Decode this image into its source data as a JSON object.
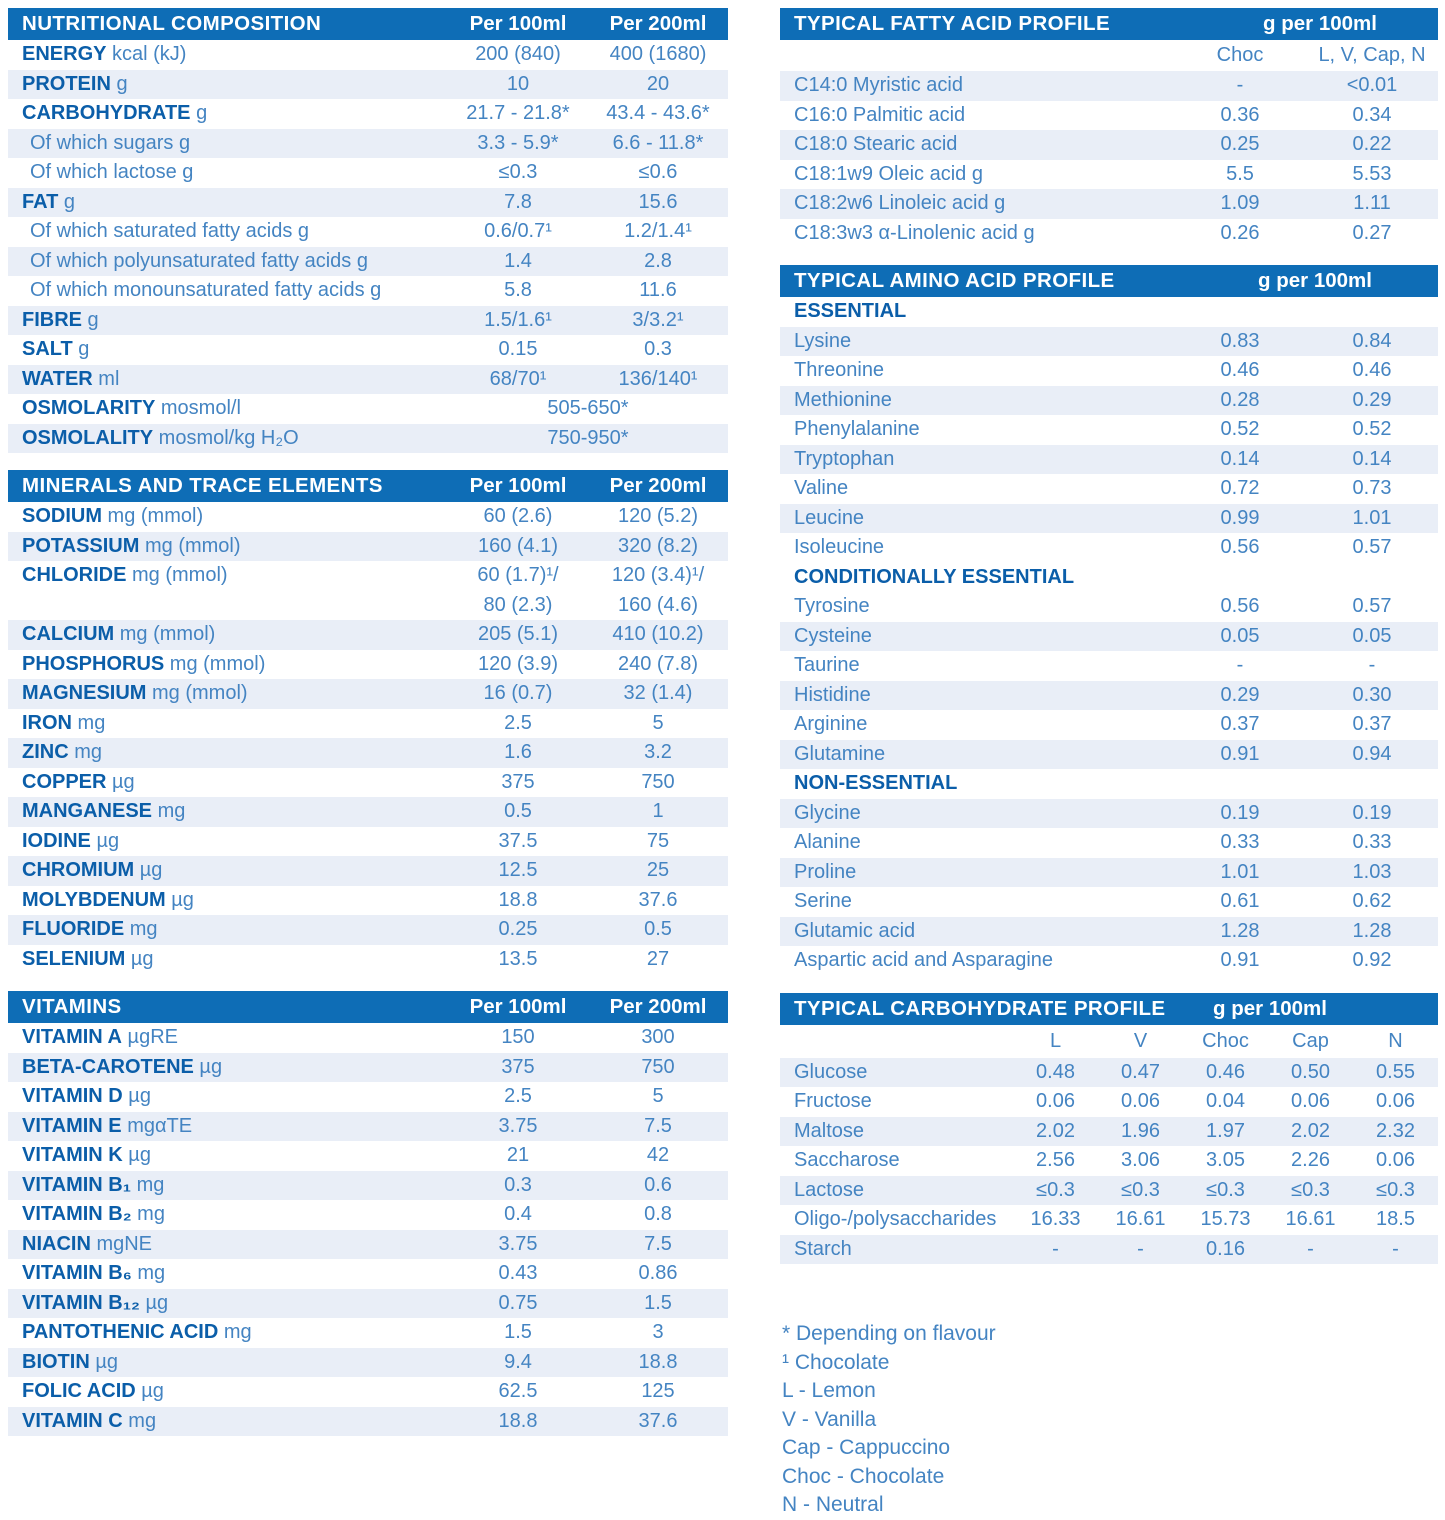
{
  "colors": {
    "header_bg": "#0e6db6",
    "label_blue": "#0b5ea9",
    "text_blue": "#4484c2",
    "row_shade": "#e9eef7",
    "header_text": "#ffffff"
  },
  "left": {
    "nutritional": {
      "title": "NUTRITIONAL COMPOSITION",
      "col1": "Per 100ml",
      "col2": "Per 200ml",
      "rows": [
        {
          "b": "ENERGY",
          "r": "kcal (kJ)",
          "v1": "200 (840)",
          "v2": "400 (1680)",
          "shade": false
        },
        {
          "b": "PROTEIN",
          "r": "g",
          "v1": "10",
          "v2": "20",
          "shade": true
        },
        {
          "b": "CARBOHYDRATE",
          "r": "g",
          "v1": "21.7 - 21.8*",
          "v2": "43.4 - 43.6*",
          "shade": false
        },
        {
          "r": "Of which sugars g",
          "indent": true,
          "v1": "3.3 - 5.9*",
          "v2": "6.6 - 11.8*",
          "shade": true
        },
        {
          "r": "Of which lactose g",
          "indent": true,
          "v1": "≤0.3",
          "v2": "≤0.6",
          "shade": false
        },
        {
          "b": "FAT",
          "r": "g",
          "v1": "7.8",
          "v2": "15.6",
          "shade": true
        },
        {
          "r": "Of which saturated fatty acids g",
          "indent": true,
          "v1": "0.6/0.7¹",
          "v2": "1.2/1.4¹",
          "shade": false
        },
        {
          "r": "Of which polyunsaturated fatty acids g",
          "indent": true,
          "v1": "1.4",
          "v2": "2.8",
          "shade": true
        },
        {
          "r": "Of which monounsaturated fatty acids g",
          "indent": true,
          "v1": "5.8",
          "v2": "11.6",
          "shade": false
        },
        {
          "b": "FIBRE",
          "r": "g",
          "v1": "1.5/1.6¹",
          "v2": "3/3.2¹",
          "shade": true
        },
        {
          "b": "SALT",
          "r": "g",
          "v1": "0.15",
          "v2": "0.3",
          "shade": false
        },
        {
          "b": "WATER",
          "r": "ml",
          "v1": "68/70¹",
          "v2": "136/140¹",
          "shade": true
        },
        {
          "b": "OSMOLARITY",
          "r": "mosmol/l",
          "span": "505-650*",
          "shade": false
        },
        {
          "b": "OSMOLALITY",
          "r": "mosmol/kg H₂O",
          "span": "750-950*",
          "shade": true
        }
      ]
    },
    "minerals": {
      "title": "MINERALS AND TRACE ELEMENTS",
      "col1": "Per 100ml",
      "col2": "Per 200ml",
      "rows": [
        {
          "b": "SODIUM",
          "r": "mg (mmol)",
          "v1": "60 (2.6)",
          "v2": "120 (5.2)",
          "shade": false
        },
        {
          "b": "POTASSIUM",
          "r": "mg (mmol)",
          "v1": "160 (4.1)",
          "v2": "320 (8.2)",
          "shade": true
        },
        {
          "b": "CHLORIDE",
          "r": "mg (mmol)",
          "v1": "60 (1.7)¹/\n80 (2.3)",
          "v2": "120 (3.4)¹/\n160 (4.6)",
          "tall": true,
          "shade": false
        },
        {
          "b": "CALCIUM",
          "r": "mg (mmol)",
          "v1": "205 (5.1)",
          "v2": "410 (10.2)",
          "shade": true
        },
        {
          "b": "PHOSPHORUS",
          "r": "mg (mmol)",
          "v1": "120 (3.9)",
          "v2": "240 (7.8)",
          "shade": false
        },
        {
          "b": "MAGNESIUM",
          "r": "mg (mmol)",
          "v1": "16 (0.7)",
          "v2": "32 (1.4)",
          "shade": true
        },
        {
          "b": "IRON",
          "r": "mg",
          "v1": "2.5",
          "v2": "5",
          "shade": false
        },
        {
          "b": "ZINC",
          "r": "mg",
          "v1": "1.6",
          "v2": "3.2",
          "shade": true
        },
        {
          "b": "COPPER",
          "r": "µg",
          "v1": "375",
          "v2": "750",
          "shade": false
        },
        {
          "b": "MANGANESE",
          "r": "mg",
          "v1": "0.5",
          "v2": "1",
          "shade": true
        },
        {
          "b": "IODINE",
          "r": "µg",
          "v1": "37.5",
          "v2": "75",
          "shade": false
        },
        {
          "b": "CHROMIUM",
          "r": "µg",
          "v1": "12.5",
          "v2": "25",
          "shade": true
        },
        {
          "b": "MOLYBDENUM",
          "r": "µg",
          "v1": "18.8",
          "v2": "37.6",
          "shade": false
        },
        {
          "b": "FLUORIDE",
          "r": "mg",
          "v1": "0.25",
          "v2": "0.5",
          "shade": true
        },
        {
          "b": "SELENIUM",
          "r": "µg",
          "v1": "13.5",
          "v2": "27",
          "shade": false
        }
      ]
    },
    "vitamins": {
      "title": "VITAMINS",
      "col1": "Per 100ml",
      "col2": "Per 200ml",
      "rows": [
        {
          "b": "VITAMIN A",
          "r": "µgRE",
          "v1": "150",
          "v2": "300",
          "shade": false
        },
        {
          "b": "BETA-CAROTENE",
          "r": "µg",
          "v1": "375",
          "v2": "750",
          "shade": true
        },
        {
          "b": "VITAMIN D",
          "r": "µg",
          "v1": "2.5",
          "v2": "5",
          "shade": false
        },
        {
          "b": "VITAMIN E",
          "r": "mgαTE",
          "v1": "3.75",
          "v2": "7.5",
          "shade": true
        },
        {
          "b": "VITAMIN K",
          "r": "µg",
          "v1": "21",
          "v2": "42",
          "shade": false
        },
        {
          "b": "VITAMIN B₁",
          "r": "mg",
          "v1": "0.3",
          "v2": "0.6",
          "shade": true
        },
        {
          "b": "VITAMIN B₂",
          "r": "mg",
          "v1": "0.4",
          "v2": "0.8",
          "shade": false
        },
        {
          "b": "NIACIN",
          "r": "mgNE",
          "v1": "3.75",
          "v2": "7.5",
          "shade": true
        },
        {
          "b": "VITAMIN B₆",
          "r": "mg",
          "v1": "0.43",
          "v2": "0.86",
          "shade": false
        },
        {
          "b": "VITAMIN B₁₂",
          "r": "µg",
          "v1": "0.75",
          "v2": "1.5",
          "shade": true
        },
        {
          "b": "PANTOTHENIC ACID",
          "r": "mg",
          "v1": "1.5",
          "v2": "3",
          "shade": false
        },
        {
          "b": "BIOTIN",
          "r": "µg",
          "v1": "9.4",
          "v2": "18.8",
          "shade": true
        },
        {
          "b": "FOLIC ACID",
          "r": "µg",
          "v1": "62.5",
          "v2": "125",
          "shade": false
        },
        {
          "b": "VITAMIN C",
          "r": "mg",
          "v1": "18.8",
          "v2": "37.6",
          "shade": true
        }
      ]
    }
  },
  "right": {
    "fatty": {
      "title": "TYPICAL FATTY ACID PROFILE",
      "unit_header": "g per 100ml",
      "cols": [
        "Choc",
        "L, V, Cap, N"
      ],
      "rows": [
        {
          "name": "C14:0 Myristic acid",
          "v1": "-",
          "v2": "<0.01",
          "shade": true
        },
        {
          "name": "C16:0 Palmitic acid",
          "v1": "0.36",
          "v2": "0.34",
          "shade": false
        },
        {
          "name": "C18:0 Stearic acid",
          "v1": "0.25",
          "v2": "0.22",
          "shade": true
        },
        {
          "name": "C18:1w9 Oleic acid g",
          "v1": "5.5",
          "v2": "5.53",
          "shade": false
        },
        {
          "name": "C18:2w6 Linoleic acid g",
          "v1": "1.09",
          "v2": "1.11",
          "shade": true
        },
        {
          "name": "C18:3w3 α-Linolenic acid g",
          "v1": "0.26",
          "v2": "0.27",
          "shade": false
        }
      ]
    },
    "amino": {
      "title": "TYPICAL AMINO ACID PROFILE",
      "unit_header": "g per 100ml",
      "groups": [
        {
          "heading": "ESSENTIAL",
          "rows": [
            {
              "name": "Lysine",
              "v1": "0.83",
              "v2": "0.84",
              "shade": true
            },
            {
              "name": "Threonine",
              "v1": "0.46",
              "v2": "0.46",
              "shade": false
            },
            {
              "name": "Methionine",
              "v1": "0.28",
              "v2": "0.29",
              "shade": true
            },
            {
              "name": "Phenylalanine",
              "v1": "0.52",
              "v2": "0.52",
              "shade": false
            },
            {
              "name": "Tryptophan",
              "v1": "0.14",
              "v2": "0.14",
              "shade": true
            },
            {
              "name": "Valine",
              "v1": "0.72",
              "v2": "0.73",
              "shade": false
            },
            {
              "name": "Leucine",
              "v1": "0.99",
              "v2": "1.01",
              "shade": true
            },
            {
              "name": "Isoleucine",
              "v1": "0.56",
              "v2": "0.57",
              "shade": false
            }
          ]
        },
        {
          "heading": "CONDITIONALLY ESSENTIAL",
          "rows": [
            {
              "name": "Tyrosine",
              "v1": "0.56",
              "v2": "0.57",
              "shade": false
            },
            {
              "name": "Cysteine",
              "v1": "0.05",
              "v2": "0.05",
              "shade": true
            },
            {
              "name": "Taurine",
              "v1": "-",
              "v2": "-",
              "shade": false
            },
            {
              "name": "Histidine",
              "v1": "0.29",
              "v2": "0.30",
              "shade": true
            },
            {
              "name": "Arginine",
              "v1": "0.37",
              "v2": "0.37",
              "shade": false
            },
            {
              "name": "Glutamine",
              "v1": "0.91",
              "v2": "0.94",
              "shade": true
            }
          ]
        },
        {
          "heading": "NON-ESSENTIAL",
          "rows": [
            {
              "name": "Glycine",
              "v1": "0.19",
              "v2": "0.19",
              "shade": true
            },
            {
              "name": "Alanine",
              "v1": "0.33",
              "v2": "0.33",
              "shade": false
            },
            {
              "name": "Proline",
              "v1": "1.01",
              "v2": "1.03",
              "shade": true
            },
            {
              "name": "Serine",
              "v1": "0.61",
              "v2": "0.62",
              "shade": false
            },
            {
              "name": "Glutamic acid",
              "v1": "1.28",
              "v2": "1.28",
              "shade": true
            },
            {
              "name": "Aspartic acid and Asparagine",
              "v1": "0.91",
              "v2": "0.92",
              "shade": false
            }
          ]
        }
      ]
    },
    "carb": {
      "title": "TYPICAL CARBOHYDRATE PROFILE",
      "unit_header": "g per 100ml",
      "cols": [
        "L",
        "V",
        "Choc",
        "Cap",
        "N"
      ],
      "rows": [
        {
          "name": "Glucose",
          "values": [
            "0.48",
            "0.47",
            "0.46",
            "0.50",
            "0.55"
          ],
          "shade": true
        },
        {
          "name": "Fructose",
          "values": [
            "0.06",
            "0.06",
            "0.04",
            "0.06",
            "0.06"
          ],
          "shade": false
        },
        {
          "name": "Maltose",
          "values": [
            "2.02",
            "1.96",
            "1.97",
            "2.02",
            "2.32"
          ],
          "shade": true
        },
        {
          "name": "Saccharose",
          "values": [
            "2.56",
            "3.06",
            "3.05",
            "2.26",
            "0.06"
          ],
          "shade": false
        },
        {
          "name": "Lactose",
          "values": [
            "≤0.3",
            "≤0.3",
            "≤0.3",
            "≤0.3",
            "≤0.3"
          ],
          "shade": true
        },
        {
          "name": "Oligo-/polysaccharides",
          "values": [
            "16.33",
            "16.61",
            "15.73",
            "16.61",
            "18.5"
          ],
          "shade": false
        },
        {
          "name": "Starch",
          "values": [
            "-",
            "-",
            "0.16",
            "-",
            "-"
          ],
          "shade": true
        }
      ]
    },
    "footnotes": [
      "* Depending on flavour",
      "¹ Chocolate",
      "L - Lemon",
      "V - Vanilla",
      "Cap - Cappuccino",
      "Choc - Chocolate",
      "N - Neutral"
    ]
  }
}
